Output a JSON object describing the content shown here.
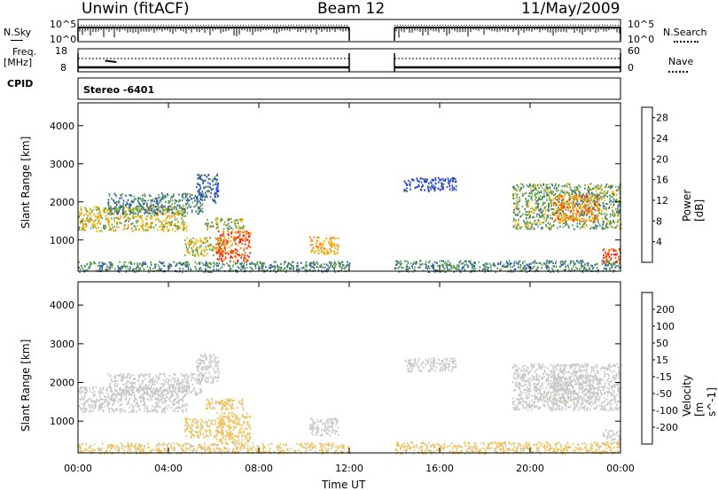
{
  "header": {
    "station": "Unwin (fitACF)",
    "beam": "Beam 12",
    "date": "11/May/2009"
  },
  "nsky": {
    "label": "N.Sky",
    "ticks_left": [
      "10^5",
      "10^0"
    ],
    "ticks_right": [
      "10^5",
      "10^0"
    ],
    "right_label": "N.Search"
  },
  "freq": {
    "label": "Freq.",
    "unit": "[MHz]",
    "ticks_left": [
      "18",
      "8"
    ],
    "ticks_right": [
      "60",
      "0"
    ],
    "right_label": "Nave"
  },
  "cpid": {
    "label": "CPID",
    "mode": "Stereo -6401"
  },
  "data_gap_ut": [
    12.0,
    14.0
  ],
  "chart_data": [
    {
      "type": "heatmap",
      "name": "power",
      "ylabel": "Slant Range [km]",
      "xlabel": "Time UT",
      "x_ticks": [
        "00:00",
        "04:00",
        "08:00",
        "12:00",
        "16:00",
        "20:00",
        "00:00"
      ],
      "xlim_hours": [
        0,
        24
      ],
      "y_ticks": [
        "1000",
        "2000",
        "3000",
        "4000"
      ],
      "ylim": [
        180,
        4600
      ],
      "colorbar_label": "Power [dB]",
      "colorbar_ticks": [
        "4",
        "8",
        "12",
        "16",
        "20",
        "24",
        "28"
      ],
      "colorbar_range": [
        0,
        30
      ],
      "colorbar_colors": [
        "#1f2cff",
        "#2c55b0",
        "#3a7d6a",
        "#6aa84f",
        "#f2b700",
        "#ff9c00",
        "#ff6a00",
        "#ff1200"
      ],
      "scatter_regions": [
        {
          "t0": 0.0,
          "t1": 4.8,
          "r0": 1250,
          "r1": 1900,
          "level": 16
        },
        {
          "t0": 1.3,
          "t1": 5.5,
          "r0": 1700,
          "r1": 2250,
          "level": 9
        },
        {
          "t0": 5.2,
          "t1": 6.2,
          "r0": 2000,
          "r1": 2750,
          "level": 7
        },
        {
          "t0": 5.6,
          "t1": 7.3,
          "r0": 1300,
          "r1": 1600,
          "level": 14
        },
        {
          "t0": 4.7,
          "t1": 6.4,
          "r0": 600,
          "r1": 1100,
          "level": 16
        },
        {
          "t0": 6.1,
          "t1": 7.6,
          "r0": 450,
          "r1": 1250,
          "level": 26
        },
        {
          "t0": 10.2,
          "t1": 11.5,
          "r0": 650,
          "r1": 1100,
          "level": 20
        },
        {
          "t0": 14.4,
          "t1": 16.7,
          "r0": 2300,
          "r1": 2650,
          "level": 4
        },
        {
          "t0": 19.2,
          "t1": 24.0,
          "r0": 1300,
          "r1": 2500,
          "level": 12
        },
        {
          "t0": 21.0,
          "t1": 23.0,
          "r0": 1500,
          "r1": 2200,
          "level": 22
        },
        {
          "t0": 23.2,
          "t1": 24.0,
          "r0": 400,
          "r1": 800,
          "level": 27
        },
        {
          "t0": 0.0,
          "t1": 12.0,
          "r0": 180,
          "r1": 450,
          "level": 10
        },
        {
          "t0": 14.0,
          "t1": 24.0,
          "r0": 180,
          "r1": 480,
          "level": 10
        }
      ]
    },
    {
      "type": "heatmap",
      "name": "velocity",
      "ylabel": "Slant Range [km]",
      "xlabel": "Time UT",
      "x_ticks": [
        "00:00",
        "04:00",
        "08:00",
        "12:00",
        "16:00",
        "20:00",
        "00:00"
      ],
      "xlim_hours": [
        0,
        24
      ],
      "y_ticks": [
        "1000",
        "2000",
        "3000",
        "4000"
      ],
      "ylim": [
        180,
        4600
      ],
      "colorbar_label": "Velocity [m s^-1]",
      "colorbar_ticks": [
        "200",
        "100",
        "50",
        "15",
        "-15",
        "-50",
        "-100",
        "-200"
      ],
      "colorbar_range": [
        -250,
        250
      ],
      "colorbar_colors": [
        "#2a3fc6",
        "#2a8a4e",
        "#3fba2c",
        "#a8d87a",
        "#c8c8c8",
        "#f2c25a",
        "#f29a1a",
        "#ff6a00",
        "#ff0000"
      ],
      "scatter_regions": [
        {
          "t0": 0.0,
          "t1": 4.8,
          "r0": 1250,
          "r1": 1900,
          "level": 0
        },
        {
          "t0": 1.3,
          "t1": 5.5,
          "r0": 1700,
          "r1": 2250,
          "level": 0
        },
        {
          "t0": 5.2,
          "t1": 6.2,
          "r0": 2000,
          "r1": 2750,
          "level": 0
        },
        {
          "t0": 5.6,
          "t1": 7.3,
          "r0": 1300,
          "r1": 1600,
          "level": -40
        },
        {
          "t0": 4.7,
          "t1": 6.4,
          "r0": 600,
          "r1": 1100,
          "level": -40
        },
        {
          "t0": 6.1,
          "t1": 7.6,
          "r0": 450,
          "r1": 1250,
          "level": -60
        },
        {
          "t0": 10.2,
          "t1": 11.5,
          "r0": 650,
          "r1": 1100,
          "level": 0
        },
        {
          "t0": 14.4,
          "t1": 16.7,
          "r0": 2300,
          "r1": 2650,
          "level": 0
        },
        {
          "t0": 19.2,
          "t1": 24.0,
          "r0": 1300,
          "r1": 2500,
          "level": 0
        },
        {
          "t0": 21.0,
          "t1": 23.0,
          "r0": 1500,
          "r1": 2200,
          "level": 10
        },
        {
          "t0": 23.2,
          "t1": 24.0,
          "r0": 400,
          "r1": 800,
          "level": 0
        },
        {
          "t0": 0.0,
          "t1": 12.0,
          "r0": 180,
          "r1": 450,
          "level": -40
        },
        {
          "t0": 14.0,
          "t1": 24.0,
          "r0": 180,
          "r1": 480,
          "level": -40
        }
      ]
    }
  ]
}
